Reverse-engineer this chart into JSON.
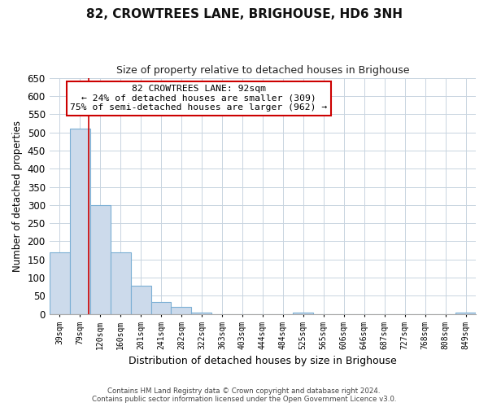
{
  "title": "82, CROWTREES LANE, BRIGHOUSE, HD6 3NH",
  "subtitle": "Size of property relative to detached houses in Brighouse",
  "xlabel": "Distribution of detached houses by size in Brighouse",
  "ylabel": "Number of detached properties",
  "bar_labels": [
    "39sqm",
    "79sqm",
    "120sqm",
    "160sqm",
    "201sqm",
    "241sqm",
    "282sqm",
    "322sqm",
    "363sqm",
    "403sqm",
    "444sqm",
    "484sqm",
    "525sqm",
    "565sqm",
    "606sqm",
    "646sqm",
    "687sqm",
    "727sqm",
    "768sqm",
    "808sqm",
    "849sqm"
  ],
  "bar_values": [
    170,
    510,
    300,
    170,
    78,
    32,
    20,
    5,
    0,
    0,
    0,
    0,
    5,
    0,
    0,
    0,
    0,
    0,
    0,
    0,
    5
  ],
  "bar_color": "#ccdaeb",
  "bar_edge_color": "#7bafd4",
  "vline_color": "#cc0000",
  "vline_x_index": 1.45,
  "ylim": [
    0,
    650
  ],
  "yticks": [
    0,
    50,
    100,
    150,
    200,
    250,
    300,
    350,
    400,
    450,
    500,
    550,
    600,
    650
  ],
  "annotation_title": "82 CROWTREES LANE: 92sqm",
  "annotation_line1": "← 24% of detached houses are smaller (309)",
  "annotation_line2": "75% of semi-detached houses are larger (962) →",
  "annotation_box_color": "#ffffff",
  "annotation_box_edge": "#cc0000",
  "footer_line1": "Contains HM Land Registry data © Crown copyright and database right 2024.",
  "footer_line2": "Contains public sector information licensed under the Open Government Licence v3.0.",
  "background_color": "#ffffff",
  "grid_color": "#c8d4e0"
}
